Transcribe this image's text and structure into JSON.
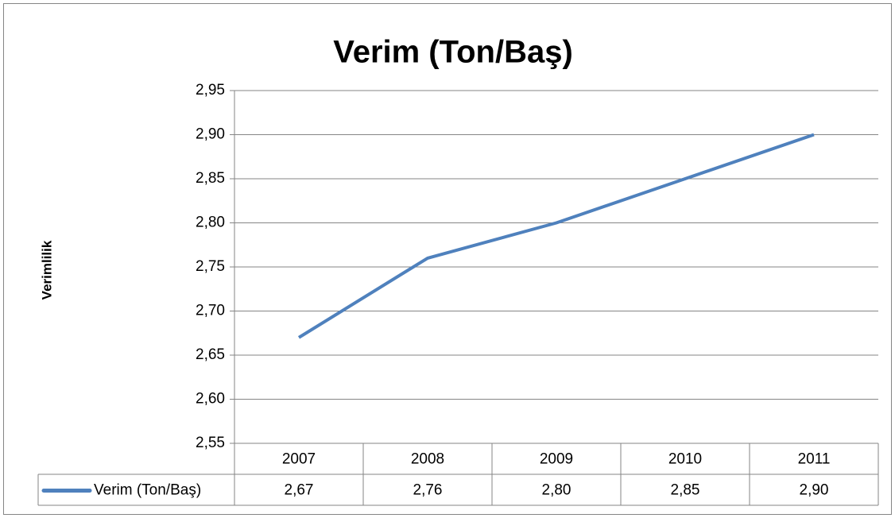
{
  "chart_data": {
    "type": "line",
    "title": "Verim (Ton/Baş)",
    "y_label": "Verimlilik",
    "categories": [
      "2007",
      "2008",
      "2009",
      "2010",
      "2011"
    ],
    "series": [
      {
        "name": "Verim (Ton/Baş)",
        "color": "#4f81bd",
        "values": [
          2.67,
          2.76,
          2.8,
          2.85,
          2.9
        ],
        "value_labels": [
          "2,67",
          "2,76",
          "2,80",
          "2,85",
          "2,90"
        ]
      }
    ],
    "ylim": [
      2.55,
      2.95
    ],
    "yticks": [
      {
        "value": 2.55,
        "label": "2,55"
      },
      {
        "value": 2.6,
        "label": "2,60"
      },
      {
        "value": 2.65,
        "label": "2,65"
      },
      {
        "value": 2.7,
        "label": "2,70"
      },
      {
        "value": 2.75,
        "label": "2,75"
      },
      {
        "value": 2.8,
        "label": "2,80"
      },
      {
        "value": 2.85,
        "label": "2,85"
      },
      {
        "value": 2.9,
        "label": "2,90"
      },
      {
        "value": 2.95,
        "label": "2,95"
      }
    ],
    "grid": true,
    "data_table": true
  }
}
